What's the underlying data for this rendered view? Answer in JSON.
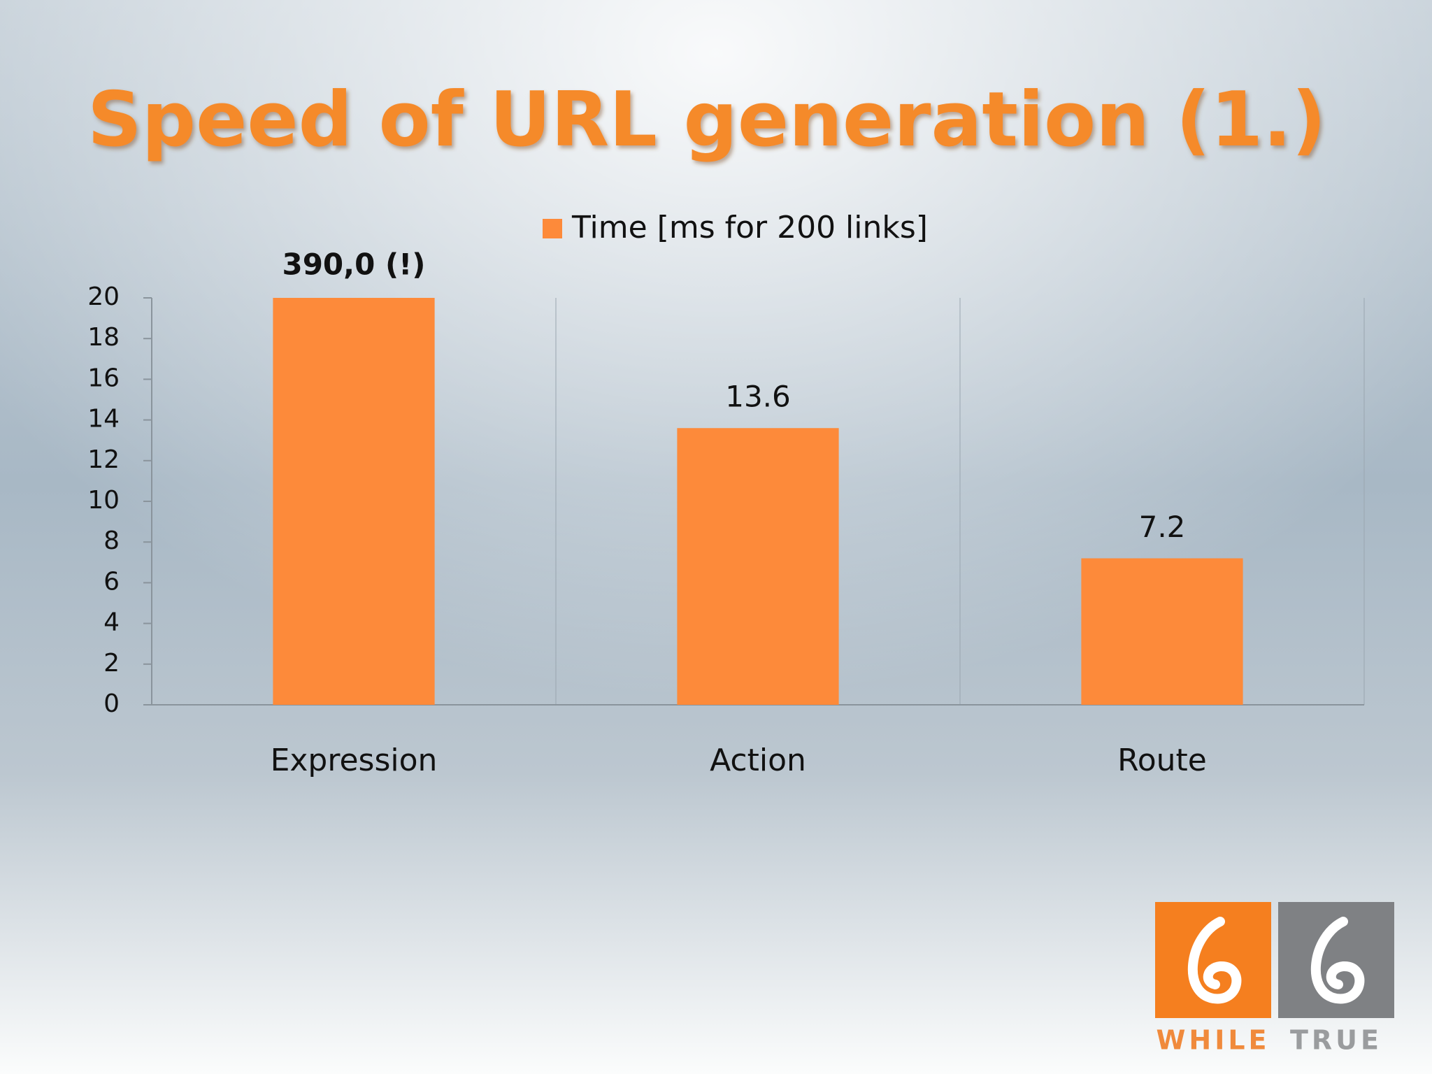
{
  "chart_data": {
    "type": "bar",
    "title": "Speed of URL generation (1.)",
    "categories": [
      "Expression",
      "Action",
      "Route"
    ],
    "series": [
      {
        "name": "Time [ms for 200 links]",
        "color": "#fd8a3a",
        "values": [
          20,
          13.6,
          7.2
        ]
      }
    ],
    "show_value_labels": [
      false,
      true,
      true
    ],
    "annotation": {
      "text": "390,0 (!)",
      "category": "Expression"
    },
    "ylim": [
      0,
      20
    ],
    "yticks": [
      0,
      2,
      4,
      6,
      8,
      10,
      12,
      14,
      16,
      18,
      20
    ],
    "legend": "top"
  },
  "logo": {
    "left": "WHILE",
    "right": "TRUE"
  }
}
